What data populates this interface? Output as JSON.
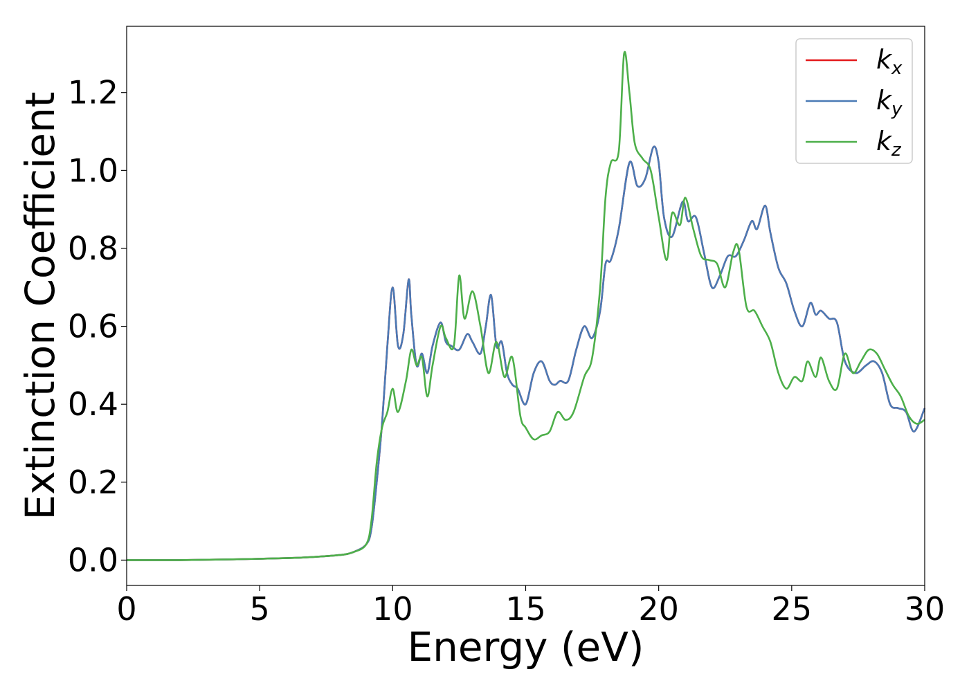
{
  "chart_data": {
    "type": "line",
    "xlabel": "Energy (eV)",
    "ylabel": "Extinction Coefficient",
    "xlim": [
      0,
      30
    ],
    "ylim": [
      -0.065,
      1.37
    ],
    "xticks": [
      0,
      5,
      10,
      15,
      20,
      25,
      30
    ],
    "yticks": [
      0.0,
      0.2,
      0.4,
      0.6,
      0.8,
      1.0,
      1.2
    ],
    "xtick_labels": [
      "0",
      "5",
      "10",
      "15",
      "20",
      "25",
      "30"
    ],
    "ytick_labels": [
      "0.0",
      "0.2",
      "0.4",
      "0.6",
      "0.8",
      "1.0",
      "1.2"
    ],
    "grid": false,
    "legend_position": "top-right",
    "series": [
      {
        "name": "k_x",
        "legend_base": "k",
        "legend_sub": "x",
        "color": "#e41a1c",
        "x": [
          0,
          2,
          4,
          6,
          7,
          8,
          8.5,
          9,
          9.2,
          9.4,
          9.6,
          9.8,
          10.0,
          10.2,
          10.4,
          10.6,
          10.7,
          10.9,
          11.1,
          11.3,
          11.5,
          11.8,
          12.0,
          12.2,
          12.5,
          12.8,
          13.0,
          13.3,
          13.5,
          13.7,
          13.9,
          14.1,
          14.3,
          14.5,
          14.7,
          15.0,
          15.3,
          15.6,
          15.9,
          16.1,
          16.3,
          16.6,
          16.9,
          17.2,
          17.5,
          17.8,
          18.0,
          18.2,
          18.5,
          18.9,
          19.2,
          19.5,
          19.8,
          20.0,
          20.2,
          20.5,
          20.9,
          21.1,
          21.4,
          21.7,
          22.0,
          22.3,
          22.6,
          22.9,
          23.2,
          23.5,
          23.7,
          24.0,
          24.2,
          24.5,
          24.8,
          25.1,
          25.4,
          25.7,
          25.9,
          26.1,
          26.4,
          26.7,
          27.0,
          27.4,
          27.8,
          28.1,
          28.4,
          28.7,
          29.0,
          29.3,
          29.6,
          30.0
        ],
        "y": [
          0.0,
          0.0,
          0.002,
          0.005,
          0.008,
          0.013,
          0.02,
          0.04,
          0.08,
          0.2,
          0.35,
          0.55,
          0.7,
          0.55,
          0.58,
          0.72,
          0.63,
          0.5,
          0.53,
          0.48,
          0.55,
          0.61,
          0.56,
          0.55,
          0.54,
          0.58,
          0.56,
          0.53,
          0.6,
          0.68,
          0.55,
          0.56,
          0.48,
          0.45,
          0.44,
          0.4,
          0.48,
          0.51,
          0.46,
          0.45,
          0.46,
          0.46,
          0.54,
          0.6,
          0.57,
          0.64,
          0.76,
          0.77,
          0.85,
          1.02,
          0.96,
          0.98,
          1.06,
          1.02,
          0.88,
          0.83,
          0.92,
          0.87,
          0.88,
          0.79,
          0.7,
          0.73,
          0.78,
          0.78,
          0.82,
          0.87,
          0.85,
          0.91,
          0.84,
          0.75,
          0.71,
          0.64,
          0.6,
          0.66,
          0.63,
          0.64,
          0.62,
          0.61,
          0.51,
          0.48,
          0.5,
          0.51,
          0.48,
          0.4,
          0.39,
          0.38,
          0.33,
          0.39
        ]
      },
      {
        "name": "k_y",
        "legend_base": "k",
        "legend_sub": "y",
        "color": "#4a7ab5",
        "x": [
          0,
          2,
          4,
          6,
          7,
          8,
          8.5,
          9,
          9.2,
          9.4,
          9.6,
          9.8,
          10.0,
          10.2,
          10.4,
          10.6,
          10.7,
          10.9,
          11.1,
          11.3,
          11.5,
          11.8,
          12.0,
          12.2,
          12.5,
          12.8,
          13.0,
          13.3,
          13.5,
          13.7,
          13.9,
          14.1,
          14.3,
          14.5,
          14.7,
          15.0,
          15.3,
          15.6,
          15.9,
          16.1,
          16.3,
          16.6,
          16.9,
          17.2,
          17.5,
          17.8,
          18.0,
          18.2,
          18.5,
          18.9,
          19.2,
          19.5,
          19.8,
          20.0,
          20.2,
          20.5,
          20.9,
          21.1,
          21.4,
          21.7,
          22.0,
          22.3,
          22.6,
          22.9,
          23.2,
          23.5,
          23.7,
          24.0,
          24.2,
          24.5,
          24.8,
          25.1,
          25.4,
          25.7,
          25.9,
          26.1,
          26.4,
          26.7,
          27.0,
          27.4,
          27.8,
          28.1,
          28.4,
          28.7,
          29.0,
          29.3,
          29.6,
          30.0
        ],
        "y": [
          0.0,
          0.0,
          0.002,
          0.005,
          0.008,
          0.013,
          0.02,
          0.04,
          0.08,
          0.2,
          0.35,
          0.55,
          0.7,
          0.55,
          0.58,
          0.72,
          0.63,
          0.5,
          0.53,
          0.48,
          0.55,
          0.61,
          0.56,
          0.55,
          0.54,
          0.58,
          0.56,
          0.53,
          0.6,
          0.68,
          0.55,
          0.56,
          0.48,
          0.45,
          0.44,
          0.4,
          0.48,
          0.51,
          0.46,
          0.45,
          0.46,
          0.46,
          0.54,
          0.6,
          0.57,
          0.64,
          0.76,
          0.77,
          0.85,
          1.02,
          0.96,
          0.98,
          1.06,
          1.02,
          0.88,
          0.83,
          0.92,
          0.87,
          0.88,
          0.79,
          0.7,
          0.73,
          0.78,
          0.78,
          0.82,
          0.87,
          0.85,
          0.91,
          0.84,
          0.75,
          0.71,
          0.64,
          0.6,
          0.66,
          0.63,
          0.64,
          0.62,
          0.61,
          0.51,
          0.48,
          0.5,
          0.51,
          0.48,
          0.4,
          0.39,
          0.38,
          0.33,
          0.39
        ]
      },
      {
        "name": "k_z",
        "legend_base": "k",
        "legend_sub": "z",
        "color": "#4daf4a",
        "x": [
          0,
          2,
          4,
          6,
          7,
          8,
          8.5,
          9,
          9.2,
          9.4,
          9.6,
          9.8,
          10.0,
          10.2,
          10.5,
          10.7,
          10.9,
          11.1,
          11.3,
          11.5,
          11.8,
          12.0,
          12.3,
          12.5,
          12.7,
          13.0,
          13.3,
          13.6,
          13.9,
          14.2,
          14.5,
          14.8,
          15.0,
          15.3,
          15.6,
          15.9,
          16.2,
          16.5,
          16.8,
          17.2,
          17.5,
          17.8,
          18.0,
          18.2,
          18.5,
          18.7,
          18.9,
          19.1,
          19.4,
          19.7,
          20.0,
          20.3,
          20.5,
          20.8,
          21.0,
          21.3,
          21.6,
          21.9,
          22.2,
          22.5,
          22.8,
          23.0,
          23.3,
          23.6,
          23.9,
          24.2,
          24.5,
          24.8,
          25.1,
          25.4,
          25.6,
          25.9,
          26.1,
          26.4,
          26.7,
          27.0,
          27.3,
          27.6,
          27.9,
          28.2,
          28.5,
          28.8,
          29.1,
          29.4,
          29.7,
          30.0
        ],
        "y": [
          0.0,
          0.0,
          0.002,
          0.005,
          0.008,
          0.013,
          0.02,
          0.04,
          0.1,
          0.25,
          0.34,
          0.38,
          0.44,
          0.38,
          0.46,
          0.54,
          0.5,
          0.52,
          0.42,
          0.5,
          0.6,
          0.57,
          0.55,
          0.73,
          0.62,
          0.69,
          0.6,
          0.48,
          0.56,
          0.47,
          0.52,
          0.37,
          0.34,
          0.31,
          0.32,
          0.33,
          0.38,
          0.36,
          0.38,
          0.47,
          0.52,
          0.7,
          0.93,
          1.02,
          1.05,
          1.3,
          1.2,
          1.07,
          1.03,
          1.0,
          0.88,
          0.77,
          0.89,
          0.86,
          0.93,
          0.85,
          0.78,
          0.77,
          0.76,
          0.7,
          0.79,
          0.8,
          0.65,
          0.64,
          0.6,
          0.56,
          0.48,
          0.44,
          0.47,
          0.46,
          0.51,
          0.47,
          0.52,
          0.46,
          0.44,
          0.53,
          0.48,
          0.51,
          0.54,
          0.53,
          0.49,
          0.45,
          0.42,
          0.37,
          0.35,
          0.36
        ]
      }
    ]
  }
}
